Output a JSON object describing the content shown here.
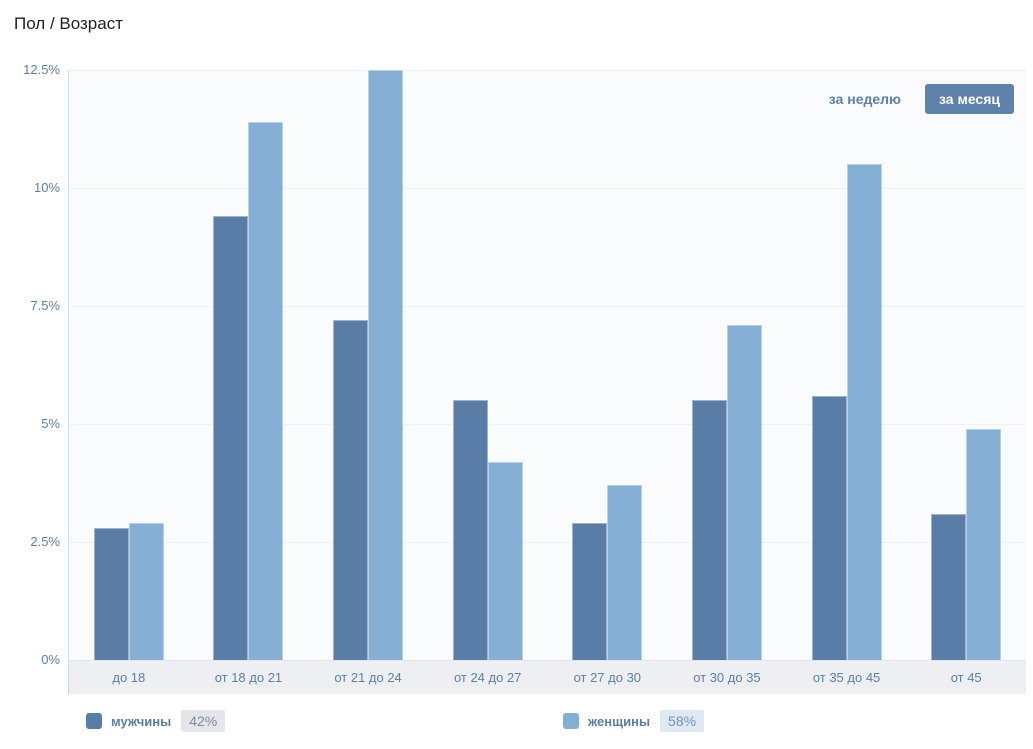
{
  "page": {
    "title": "Пол / Возраст"
  },
  "controls": {
    "week_label": "за неделю",
    "month_label": "за месяц"
  },
  "chart_data": {
    "type": "bar",
    "title": "Пол / Возраст",
    "categories": [
      "до 18",
      "от 18 до 21",
      "от 21 до 24",
      "от 24 до 27",
      "от 27 до 30",
      "от 30 до 35",
      "от 35 до 45",
      "от 45"
    ],
    "series": [
      {
        "key": "men",
        "name": "мужчины",
        "share": "42%",
        "color": "#5a7da7",
        "values": [
          2.8,
          9.4,
          7.2,
          5.5,
          2.9,
          5.5,
          5.6,
          3.1
        ]
      },
      {
        "key": "women",
        "name": "женщины",
        "share": "58%",
        "color": "#85afd4",
        "values": [
          2.9,
          11.4,
          12.5,
          4.2,
          3.7,
          7.1,
          10.5,
          4.9
        ]
      }
    ],
    "xlabel": "",
    "ylabel": "",
    "yticks": [
      "0%",
      "2.5%",
      "5%",
      "7.5%",
      "10%",
      "12.5%"
    ],
    "ylim": [
      0,
      12.5
    ],
    "grid": "horizontal",
    "legend_position": "bottom"
  },
  "colors": {
    "bar_men": "#5a7da7",
    "bar_women": "#85afd4",
    "accent_button": "#5e82ab",
    "axis_text": "#5b80a9",
    "band_background": "#edeff3",
    "plot_background": "#fafbfc"
  }
}
